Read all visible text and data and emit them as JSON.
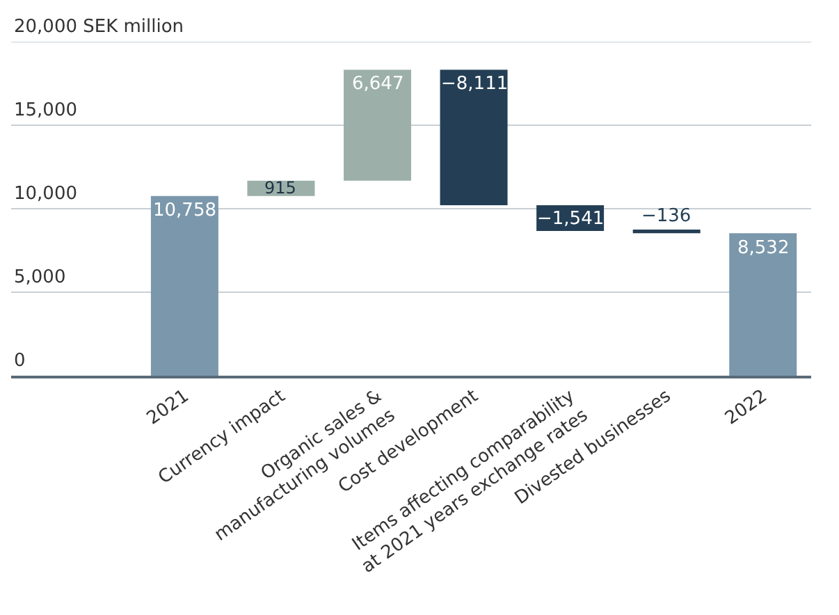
{
  "chart_data": {
    "type": "bar",
    "categories": [
      "2021",
      "Currency impact",
      "Organic sales &\nmanufacturing volumes",
      "Cost development",
      "Items affecting comparability\nat 2021 years exchange rates",
      "Divested businesses",
      "2022"
    ],
    "values": [
      10758,
      915,
      6647,
      -8111,
      -1541,
      -136,
      8532
    ],
    "base": [
      0,
      10758,
      11673,
      18320,
      10209,
      8668,
      0
    ],
    "colors": [
      "#7b97ab",
      "#9cb0a9",
      "#9cb0a9",
      "#243f55",
      "#243f55",
      "#243f55",
      "#7b97ab"
    ],
    "value_labels": [
      "10,758",
      "915",
      "6,647",
      "−8,111",
      "−1,541",
      "−136",
      "8,532"
    ],
    "ylim": [
      0,
      20000
    ],
    "yticks": [
      0,
      {
        "value": 5000,
        "label": "5,000"
      },
      {
        "value": 10000,
        "label": "10,000"
      },
      {
        "value": 15000,
        "label": "15,000"
      },
      {
        "value": 20000,
        "label": "20,000 SEK million"
      }
    ],
    "grid": "y",
    "legend": false
  }
}
